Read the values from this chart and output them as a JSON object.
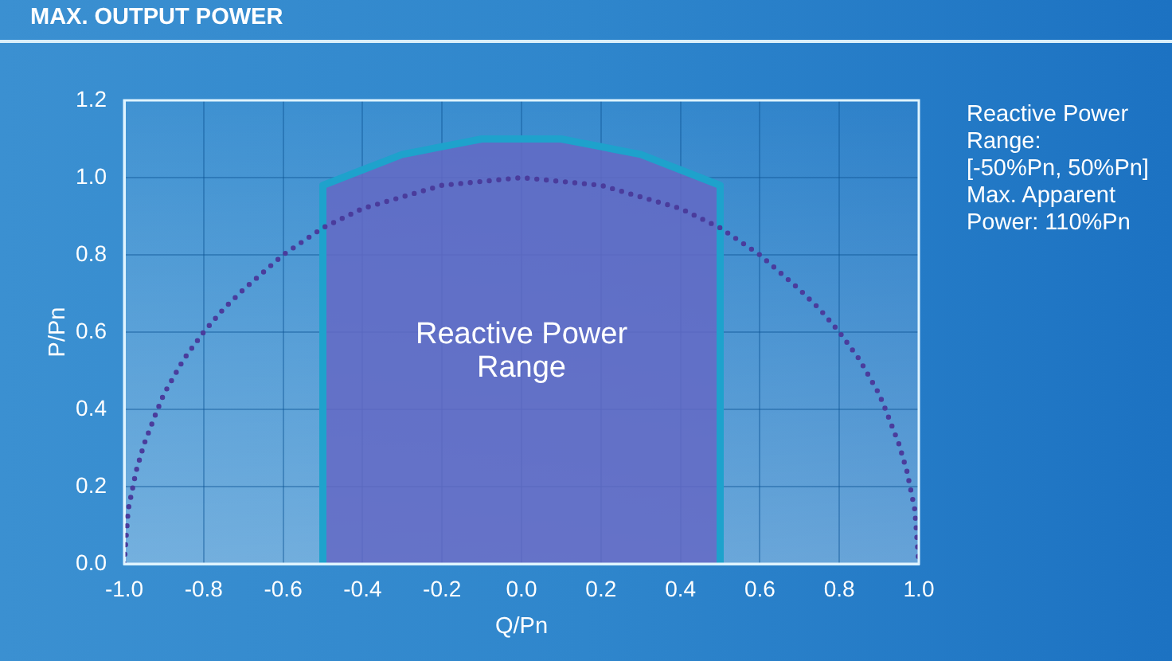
{
  "chart_data": {
    "type": "line",
    "title": "MAX. OUTPUT POWER",
    "xlabel": "Q/Pn",
    "ylabel": "P/Pn",
    "xlim": [
      -1,
      1
    ],
    "xticks": [
      {
        "value": -1,
        "label": "-1.0"
      },
      -0.8,
      -0.6,
      -0.4,
      -0.2,
      {
        "value": 0,
        "label": "0.0"
      },
      0.2,
      0.4,
      0.6,
      0.8,
      {
        "value": 1,
        "label": "1.0"
      }
    ],
    "ylim": [
      0,
      1.2
    ],
    "yticks": [
      {
        "value": 0,
        "label": "0.0"
      },
      0.2,
      0.4,
      0.6,
      0.8,
      {
        "value": 1,
        "label": "1.0"
      },
      1.2
    ],
    "grid": true,
    "marker": "none",
    "series": [
      {
        "type": "line",
        "color": "#4a3c9c",
        "line_style": "dotted",
        "x": [
          -1,
          -0.99,
          -0.97,
          -0.95,
          -0.92,
          -0.9,
          -0.85,
          -0.8,
          -0.75,
          -0.7,
          -0.6,
          -0.5,
          -0.4,
          -0.3,
          -0.2,
          -0.1,
          0,
          0.1,
          0.2,
          0.3,
          0.4,
          0.5,
          0.6,
          0.7,
          0.75,
          0.8,
          0.85,
          0.9,
          0.92,
          0.95,
          0.97,
          0.99,
          1
        ],
        "values": [
          0,
          0.14,
          0.24,
          0.31,
          0.39,
          0.44,
          0.53,
          0.6,
          0.66,
          0.71,
          0.8,
          0.87,
          0.92,
          0.95,
          0.98,
          0.99,
          1,
          0.99,
          0.98,
          0.95,
          0.92,
          0.87,
          0.8,
          0.71,
          0.66,
          0.6,
          0.53,
          0.44,
          0.39,
          0.31,
          0.24,
          0.14,
          0
        ]
      },
      {
        "type": "area",
        "name": "Reactive Power Range",
        "color": "#6468c4",
        "x": [
          -0.5,
          -0.5,
          -0.45,
          -0.4,
          -0.35,
          -0.3,
          -0.25,
          -0.2,
          -0.15,
          -0.1,
          -0.05,
          0,
          0.05,
          0.1,
          0.15,
          0.2,
          0.25,
          0.3,
          0.35,
          0.4,
          0.45,
          0.5,
          0.5
        ],
        "values": [
          0,
          0.98,
          1.0,
          1.02,
          1.04,
          1.06,
          1.07,
          1.08,
          1.09,
          1.1,
          1.1,
          1.1,
          1.1,
          1.1,
          1.09,
          1.08,
          1.07,
          1.06,
          1.04,
          1.02,
          1.0,
          0.98,
          0
        ]
      }
    ],
    "annotations": [
      "Reactive Power Range:",
      "[-50%Pn, 50%Pn]",
      "Max. Apparent Power: 110%Pn"
    ]
  }
}
